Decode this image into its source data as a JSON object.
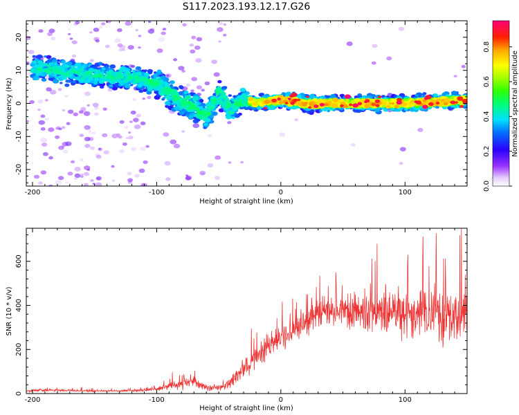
{
  "title": "S117.2023.193.12.17.G26",
  "chart_data": [
    {
      "type": "heatmap",
      "xlabel": "Height of straight line (km)",
      "ylabel": "Frequency (Hz)",
      "xlim": [
        -205,
        150
      ],
      "ylim": [
        -25,
        25
      ],
      "x_ticks": [
        -200,
        -100,
        0,
        100
      ],
      "y_ticks": [
        -20,
        -10,
        0,
        10,
        20
      ],
      "grid": false,
      "ridge": {
        "x": [
          -200,
          -180,
          -160,
          -140,
          -120,
          -100,
          -90,
          -80,
          -70,
          -60,
          -50,
          -40,
          -30,
          -20,
          0,
          20,
          50,
          100,
          150
        ],
        "frequency": [
          11,
          10,
          9,
          8,
          8,
          6,
          3,
          1,
          -1,
          -4,
          3,
          -2,
          1,
          0,
          1,
          0,
          0,
          0,
          1
        ]
      },
      "colorbar": {
        "label": "Normalized spectral amplitude",
        "range": [
          0,
          0.95
        ],
        "ticks": [
          0.0,
          0.2,
          0.4,
          0.6,
          0.8
        ]
      }
    },
    {
      "type": "line",
      "xlabel": "Height of straight line (km)",
      "ylabel": "SNR (10 * v/v)",
      "xlim": [
        -205,
        150
      ],
      "ylim": [
        0,
        750
      ],
      "x_ticks": [
        -200,
        -100,
        0,
        100
      ],
      "y_ticks": [
        0,
        200,
        400,
        600
      ],
      "grid": false,
      "series": [
        {
          "color": "#ee3333",
          "x": [
            -205,
            -190,
            -170,
            -150,
            -130,
            -110,
            -100,
            -90,
            -80,
            -70,
            -60,
            -50,
            -40,
            -30,
            -20,
            -10,
            0,
            10,
            20,
            30,
            40,
            50,
            60,
            70,
            80,
            90,
            100,
            110,
            120,
            130,
            140,
            150
          ],
          "mean": [
            12,
            15,
            14,
            12,
            12,
            15,
            20,
            35,
            45,
            55,
            25,
            25,
            50,
            110,
            170,
            220,
            250,
            290,
            330,
            360,
            380,
            370,
            380,
            370,
            360,
            360,
            360,
            360,
            360,
            350,
            360,
            380
          ],
          "spread": [
            8,
            10,
            8,
            6,
            6,
            8,
            10,
            25,
            40,
            50,
            20,
            20,
            45,
            70,
            80,
            80,
            80,
            90,
            100,
            110,
            120,
            130,
            140,
            150,
            160,
            160,
            170,
            170,
            180,
            180,
            190,
            200
          ]
        }
      ]
    }
  ]
}
